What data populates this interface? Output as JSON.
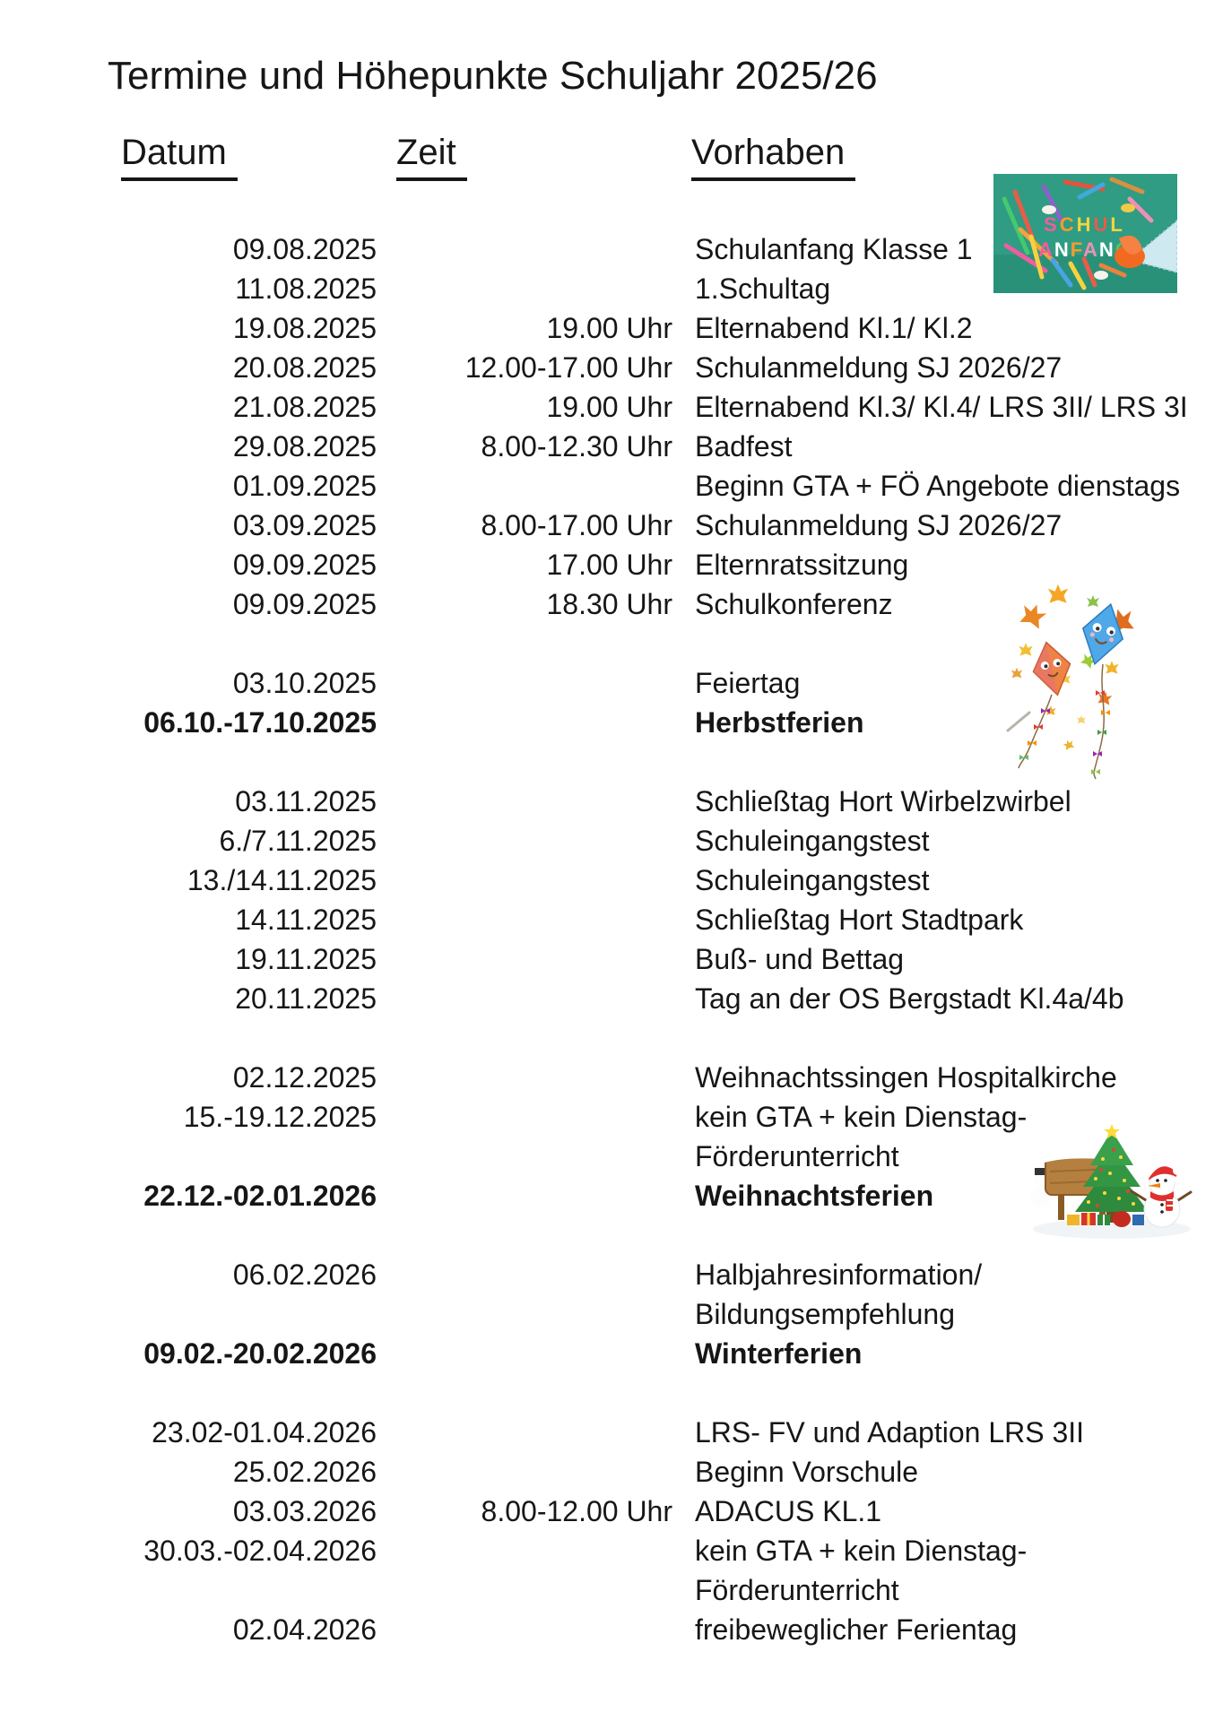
{
  "document": {
    "title": "Termine und Höhepunkte Schuljahr 2025/26",
    "headers": {
      "datum": "Datum",
      "zeit": "Zeit",
      "vorhaben": "Vorhaben"
    }
  },
  "schedule": {
    "rows": [
      {
        "date": "09.08.2025",
        "time": "",
        "event": "Schulanfang Klasse 1"
      },
      {
        "date": "11.08.2025",
        "time": "",
        "event": "1.Schultag"
      },
      {
        "date": "19.08.2025",
        "time": "19.00 Uhr",
        "event": "Elternabend Kl.1/ Kl.2"
      },
      {
        "date": "20.08.2025",
        "time": "12.00-17.00 Uhr",
        "event": "Schulanmeldung SJ 2026/27"
      },
      {
        "date": "21.08.2025",
        "time": "19.00 Uhr",
        "event": "Elternabend Kl.3/ Kl.4/ LRS 3II/ LRS 3I"
      },
      {
        "date": "29.08.2025",
        "time": "8.00-12.30 Uhr",
        "event": "Badfest"
      },
      {
        "date": "01.09.2025",
        "time": "",
        "event": "Beginn GTA + FÖ Angebote dienstags"
      },
      {
        "date": "03.09.2025",
        "time": "8.00-17.00 Uhr",
        "event": "Schulanmeldung SJ 2026/27"
      },
      {
        "date": "09.09.2025",
        "time": "17.00 Uhr",
        "event": "Elternratssitzung"
      },
      {
        "date": "09.09.2025",
        "time": "18.30 Uhr",
        "event": "Schulkonferenz"
      },
      {
        "date": "03.10.2025",
        "time": "",
        "event": "Feiertag",
        "gap_before": true
      },
      {
        "date": "06.10.-17.10.2025",
        "time": "",
        "event": "Herbstferien",
        "bold": true
      },
      {
        "date": "03.11.2025",
        "time": "",
        "event": "Schließtag Hort Wirbelzwirbel",
        "gap_before": true
      },
      {
        "date": "6./7.11.2025",
        "time": "",
        "event": "Schuleingangstest"
      },
      {
        "date": "13./14.11.2025",
        "time": "",
        "event": "Schuleingangstest"
      },
      {
        "date": "14.11.2025",
        "time": "",
        "event": "Schließtag Hort Stadtpark"
      },
      {
        "date": "19.11.2025",
        "time": "",
        "event": "Buß- und Bettag"
      },
      {
        "date": "20.11.2025",
        "time": "",
        "event": "Tag an der OS Bergstadt Kl.4a/4b"
      },
      {
        "date": "02.12.2025",
        "time": "",
        "event": "Weihnachtssingen Hospitalkirche",
        "gap_before": true
      },
      {
        "date": "15.-19.12.2025",
        "time": "",
        "event": "kein GTA + kein Dienstag-"
      },
      {
        "date": "",
        "time": "",
        "event": "Förderunterricht"
      },
      {
        "date": "22.12.-02.01.2026",
        "time": "",
        "event": "Weihnachtsferien",
        "bold": true
      },
      {
        "date": "06.02.2026",
        "time": "",
        "event": "Halbjahresinformation/",
        "gap_before": true
      },
      {
        "date": "",
        "time": "",
        "event": "Bildungsempfehlung"
      },
      {
        "date": "09.02.-20.02.2026",
        "time": "",
        "event": "Winterferien",
        "bold": true
      },
      {
        "date": "23.02-01.04.2026",
        "time": "",
        "event": "LRS- FV und Adaption LRS 3II",
        "gap_before": true
      },
      {
        "date": "25.02.2026",
        "time": "",
        "event": "Beginn Vorschule"
      },
      {
        "date": "03.03.2026",
        "time": "8.00-12.00 Uhr",
        "event": "ADACUS KL.1"
      },
      {
        "date": "30.03.-02.04.2026",
        "time": "",
        "event": "kein GTA + kein Dienstag-"
      },
      {
        "date": "",
        "time": "",
        "event": "Förderunterricht"
      },
      {
        "date": "02.04.2026",
        "time": "",
        "event": "freibeweglicher Ferientag"
      }
    ]
  },
  "images": {
    "schulanfang": {
      "line1": "SCHUL",
      "line2": "ANFANG"
    }
  },
  "colors": {
    "text": "#161616",
    "background": "#ffffff",
    "chalkboard_green": "#2f9c83"
  }
}
